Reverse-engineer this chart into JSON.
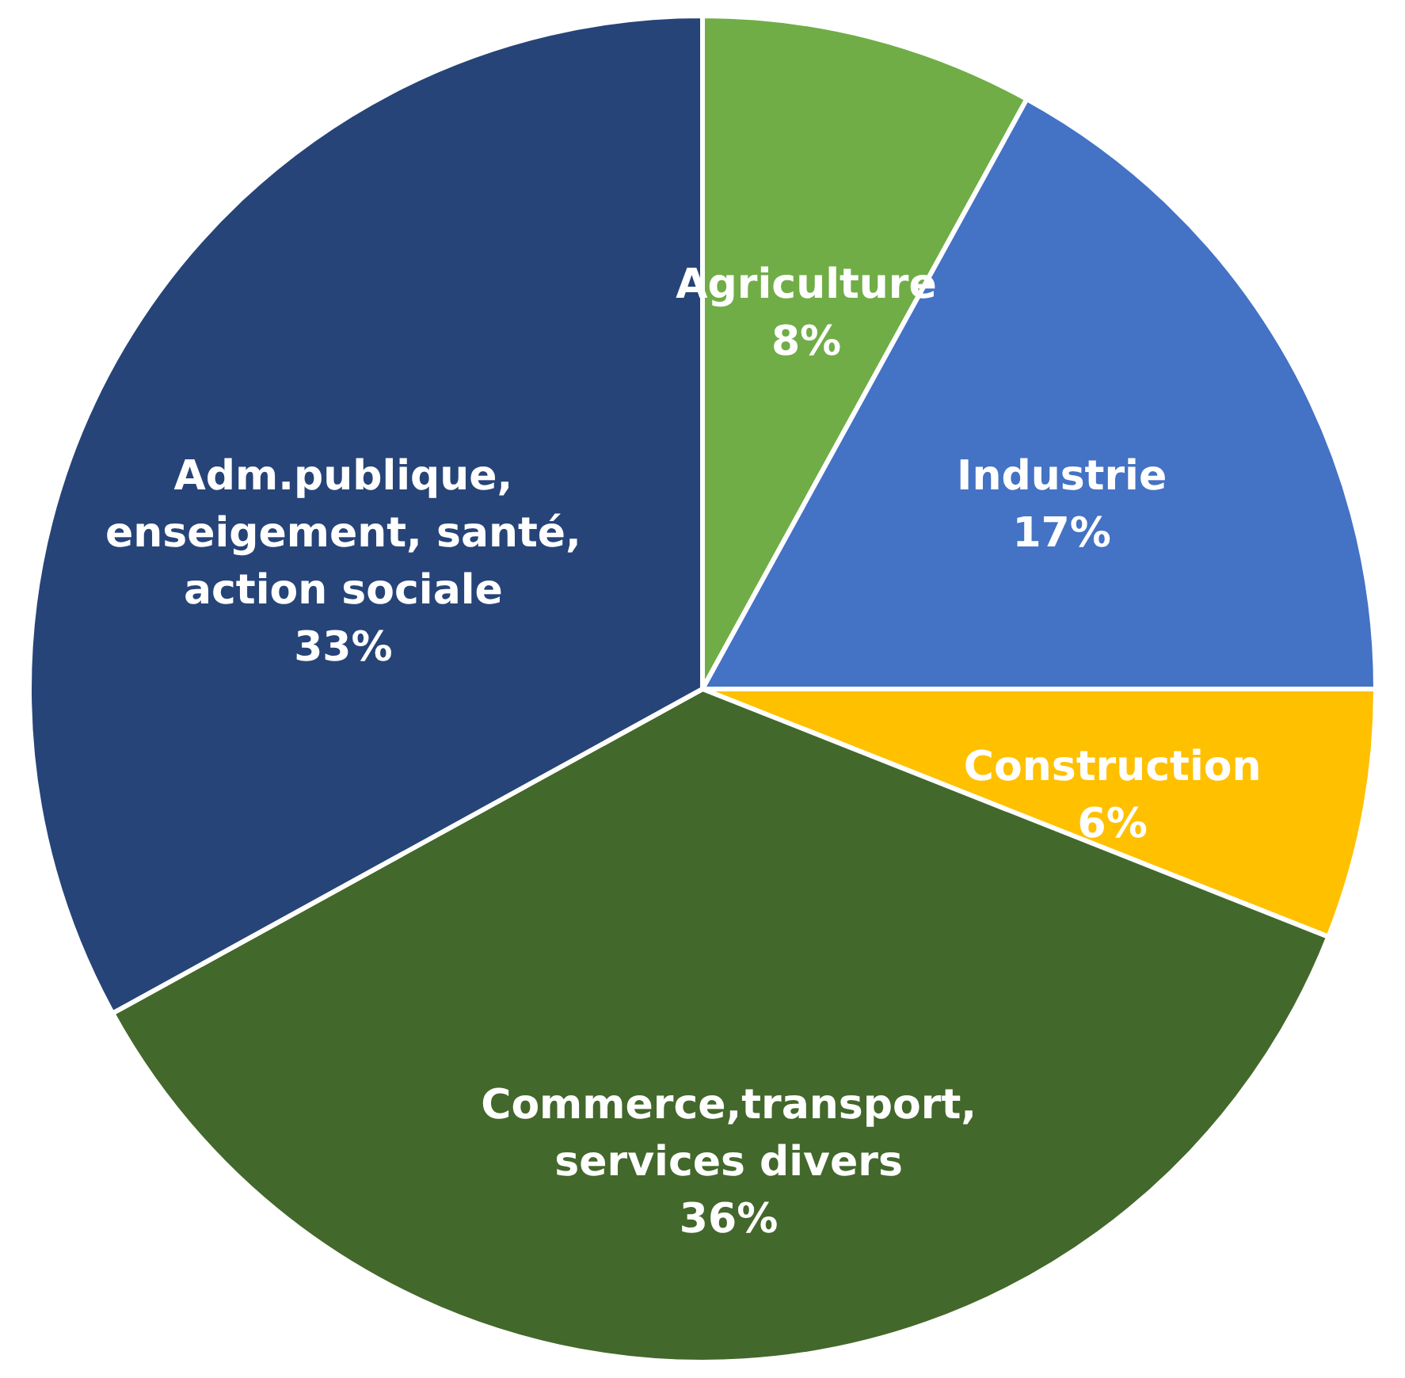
{
  "chart_data": {
    "type": "pie",
    "categories": [
      "Agriculture",
      "Industrie",
      "Construction",
      "Commerce,transport, services divers",
      "Adm.publique, enseigement, santé, action sociale"
    ],
    "values": [
      8,
      17,
      6,
      36,
      33
    ],
    "value_labels": [
      "8%",
      "17%",
      "6%",
      "36%",
      "33%"
    ],
    "colors": [
      "#70ad47",
      "#4472c4",
      "#ffc000",
      "#43682b",
      "#264478"
    ]
  }
}
